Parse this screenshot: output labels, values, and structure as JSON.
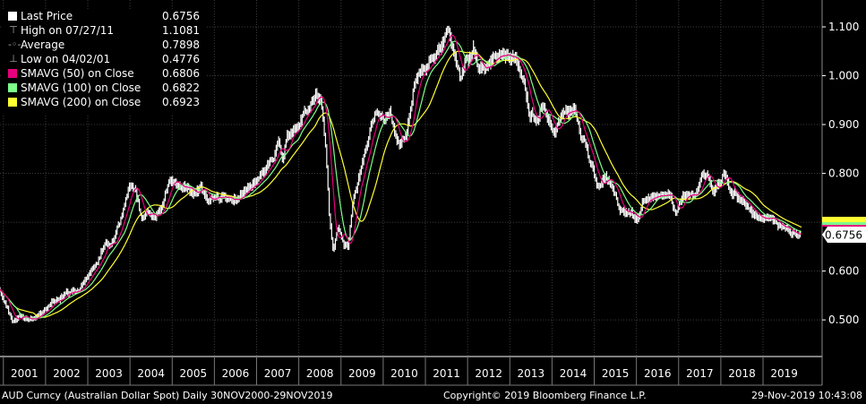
{
  "legend": {
    "last_price": {
      "label": "Last Price",
      "value": "0.6756",
      "color": "#ffffff",
      "icon": "white-square-icon"
    },
    "high": {
      "label": "High on 07/27/11",
      "value": "1.1081",
      "icon": "high-marker-icon"
    },
    "average": {
      "label": "Average",
      "value": "0.7898",
      "icon": "average-marker-icon"
    },
    "low": {
      "label": "Low on 04/02/01",
      "value": "0.4776",
      "icon": "low-marker-icon"
    },
    "sma50": {
      "label": "SMAVG (50)  on Close",
      "value": "0.6806",
      "color": "#e6007e"
    },
    "sma100": {
      "label": "SMAVG (100)  on Close",
      "value": "0.6822",
      "color": "#7dff8a"
    },
    "sma200": {
      "label": "SMAVG (200)  on Close",
      "value": "0.6923",
      "color": "#ffff33"
    }
  },
  "last_price_tag": "0.6756",
  "footer": {
    "left": "AUD Curncy (Australian Dollar Spot)  Daily 30NOV2000-29NOV2019",
    "center": "Copyright© 2019 Bloomberg Finance L.P.",
    "right": "29-Nov-2019 10:43:08"
  },
  "chart_data": {
    "type": "line",
    "x_tick_labels": [
      "2001",
      "2002",
      "2003",
      "2004",
      "2005",
      "2006",
      "2007",
      "2008",
      "2009",
      "2010",
      "2011",
      "2012",
      "2013",
      "2014",
      "2015",
      "2016",
      "2017",
      "2018",
      "2019"
    ],
    "y_tick_labels": [
      "0.500",
      "0.600",
      "0.700",
      "0.800",
      "0.900",
      "1.000",
      "1.100"
    ],
    "ylim": [
      0.425,
      1.155
    ],
    "xlim": [
      2000.92,
      2020.4
    ],
    "grid": true,
    "legend_position": "top-left",
    "price": {
      "name": "Last Price",
      "x": [
        2000.92,
        2001.05,
        2001.25,
        2001.4,
        2001.55,
        2001.75,
        2001.9,
        2002.1,
        2002.3,
        2002.5,
        2002.65,
        2002.8,
        2003.0,
        2003.2,
        2003.4,
        2003.6,
        2003.8,
        2004.0,
        2004.15,
        2004.3,
        2004.45,
        2004.6,
        2004.8,
        2004.95,
        2005.15,
        2005.3,
        2005.5,
        2005.7,
        2005.9,
        2006.1,
        2006.3,
        2006.45,
        2006.6,
        2006.8,
        2007.0,
        2007.2,
        2007.4,
        2007.55,
        2007.65,
        2007.75,
        2007.9,
        2008.05,
        2008.2,
        2008.4,
        2008.55,
        2008.65,
        2008.75,
        2008.85,
        2008.95,
        2009.1,
        2009.2,
        2009.3,
        2009.45,
        2009.6,
        2009.75,
        2009.9,
        2010.05,
        2010.2,
        2010.35,
        2010.45,
        2010.6,
        2010.75,
        2010.9,
        2011.05,
        2011.2,
        2011.35,
        2011.5,
        2011.57,
        2011.7,
        2011.85,
        2012.0,
        2012.15,
        2012.3,
        2012.45,
        2012.6,
        2012.75,
        2012.9,
        2013.05,
        2013.2,
        2013.35,
        2013.5,
        2013.65,
        2013.8,
        2013.95,
        2014.1,
        2014.25,
        2014.4,
        2014.55,
        2014.7,
        2014.85,
        2015.0,
        2015.15,
        2015.3,
        2015.45,
        2015.6,
        2015.75,
        2015.9,
        2016.05,
        2016.2,
        2016.35,
        2016.5,
        2016.65,
        2016.8,
        2016.95,
        2017.1,
        2017.25,
        2017.4,
        2017.55,
        2017.7,
        2017.85,
        2018.0,
        2018.1,
        2018.25,
        2018.4,
        2018.55,
        2018.7,
        2018.85,
        2019.0,
        2019.1,
        2019.25,
        2019.4,
        2019.55,
        2019.7,
        2019.91
      ],
      "y": [
        0.56,
        0.535,
        0.495,
        0.51,
        0.505,
        0.5,
        0.515,
        0.525,
        0.545,
        0.555,
        0.555,
        0.56,
        0.585,
        0.605,
        0.645,
        0.66,
        0.71,
        0.77,
        0.775,
        0.7,
        0.725,
        0.705,
        0.74,
        0.78,
        0.78,
        0.77,
        0.765,
        0.77,
        0.74,
        0.745,
        0.75,
        0.745,
        0.755,
        0.765,
        0.785,
        0.8,
        0.835,
        0.865,
        0.82,
        0.88,
        0.885,
        0.91,
        0.93,
        0.955,
        0.96,
        0.87,
        0.72,
        0.64,
        0.69,
        0.655,
        0.65,
        0.73,
        0.79,
        0.84,
        0.905,
        0.91,
        0.905,
        0.92,
        0.86,
        0.86,
        0.88,
        0.98,
        1.0,
        1.01,
        1.035,
        1.06,
        1.08,
        1.1,
        1.05,
        0.99,
        1.035,
        1.065,
        1.01,
        1.02,
        1.045,
        1.04,
        1.045,
        1.04,
        1.03,
        0.985,
        0.92,
        0.905,
        0.94,
        0.905,
        0.875,
        0.92,
        0.93,
        0.94,
        0.88,
        0.86,
        0.81,
        0.775,
        0.79,
        0.77,
        0.735,
        0.72,
        0.72,
        0.705,
        0.74,
        0.745,
        0.755,
        0.76,
        0.76,
        0.72,
        0.755,
        0.76,
        0.75,
        0.79,
        0.795,
        0.76,
        0.78,
        0.805,
        0.77,
        0.755,
        0.745,
        0.72,
        0.715,
        0.705,
        0.71,
        0.705,
        0.695,
        0.69,
        0.68,
        0.6756
      ]
    },
    "series": [
      {
        "name": "SMAVG (50)  on Close",
        "color": "#e6007e",
        "window": 50
      },
      {
        "name": "SMAVG (100)  on Close",
        "color": "#7dff8a",
        "window": 100
      },
      {
        "name": "SMAVG (200)  on Close",
        "color": "#ffff33",
        "window": 200
      }
    ]
  }
}
